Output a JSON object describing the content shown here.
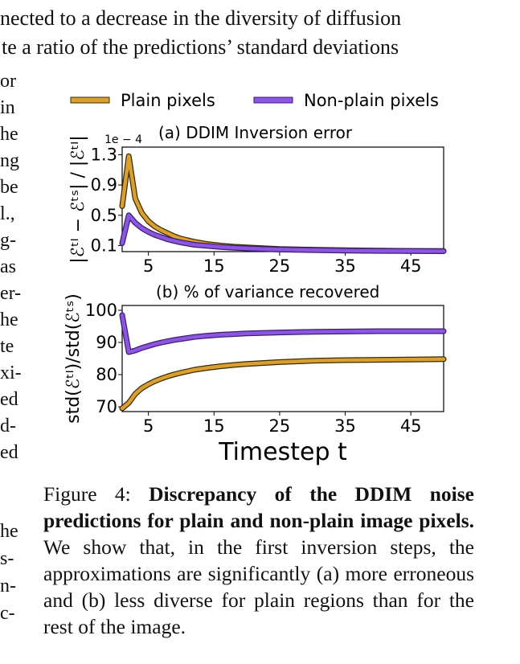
{
  "body_text": {
    "line1": "nected to a decrease in the diversity of diffusion",
    "line2": "te a ratio of the predictions’ standard deviations",
    "left_fragments_upper": [
      "or",
      "in",
      "he",
      "ng",
      "be",
      "l.,",
      "g-",
      "as",
      "er-",
      "he",
      "te",
      "xi-",
      "ed",
      "d-",
      "ed"
    ],
    "left_fragments_lower": [
      "he",
      "s-",
      "n-",
      "c-"
    ]
  },
  "legend": {
    "plain": "Plain pixels",
    "nonplain": "Non-plain pixels"
  },
  "colors": {
    "plain": "#d9a030",
    "plain_edge": "#3a2a08",
    "nonplain": "#8d55e0",
    "nonplain_edge": "#3a1f70"
  },
  "chart_data": [
    {
      "type": "line",
      "title": "(a) DDIM Inversion error",
      "ylabel": "|ℰᵗᴵ − ℰᵗˢ| / |ℰᵗᴵ|",
      "y_multiplier": "1e − 4",
      "xticks": [
        5,
        15,
        25,
        35,
        45
      ],
      "yticks": [
        0.1,
        0.5,
        0.9,
        1.3
      ],
      "ytick_labels": [
        "0.1",
        "0.5",
        "0.9",
        "1.3"
      ],
      "xlim": [
        1,
        50
      ],
      "ylim": [
        0.02,
        1.4
      ],
      "grid": false,
      "x": [
        1,
        2,
        3,
        4,
        5,
        6,
        7,
        8,
        9,
        10,
        12,
        14,
        16,
        18,
        20,
        25,
        30,
        35,
        40,
        45,
        50
      ],
      "series": [
        {
          "name": "Plain pixels",
          "values": [
            0.62,
            1.28,
            0.72,
            0.53,
            0.42,
            0.35,
            0.3,
            0.26,
            0.22,
            0.19,
            0.15,
            0.12,
            0.1,
            0.085,
            0.075,
            0.055,
            0.045,
            0.038,
            0.033,
            0.03,
            0.028
          ]
        },
        {
          "name": "Non-plain pixels",
          "values": [
            0.13,
            0.5,
            0.4,
            0.33,
            0.28,
            0.24,
            0.21,
            0.18,
            0.16,
            0.14,
            0.11,
            0.095,
            0.08,
            0.07,
            0.062,
            0.048,
            0.04,
            0.034,
            0.03,
            0.027,
            0.025
          ]
        }
      ]
    },
    {
      "type": "line",
      "title": "(b) % of variance recovered",
      "ylabel": "std(ℰᵗᴵ)/std(ℰᵗˢ)",
      "xlabel": "Timestep t",
      "xticks": [
        5,
        15,
        25,
        35,
        45
      ],
      "yticks": [
        70,
        80,
        90,
        100
      ],
      "ytick_labels": [
        "70",
        "80",
        "90",
        "100"
      ],
      "xlim": [
        1,
        50
      ],
      "ylim": [
        68.5,
        101.5
      ],
      "grid": false,
      "x": [
        1,
        2,
        3,
        4,
        5,
        6,
        7,
        8,
        9,
        10,
        12,
        14,
        16,
        18,
        20,
        25,
        30,
        35,
        40,
        45,
        50
      ],
      "series": [
        {
          "name": "Plain pixels",
          "values": [
            69.5,
            71.2,
            74.0,
            75.8,
            77.0,
            78.0,
            78.8,
            79.5,
            80.1,
            80.6,
            81.5,
            82.1,
            82.6,
            83.0,
            83.3,
            83.9,
            84.3,
            84.5,
            84.6,
            84.7,
            84.8
          ]
        },
        {
          "name": "Non-plain pixels",
          "values": [
            98.5,
            87.0,
            87.5,
            88.3,
            88.9,
            89.5,
            90.0,
            90.4,
            90.8,
            91.1,
            91.7,
            92.1,
            92.4,
            92.6,
            92.8,
            93.1,
            93.3,
            93.4,
            93.5,
            93.5,
            93.5
          ]
        }
      ]
    }
  ],
  "caption": {
    "label": "Figure 4:",
    "bold": "Discrepancy of the DDIM noise predictions for plain and non-plain image pixels.",
    "rest": "We show that, in the first inversion steps, the approximations are significantly (a) more erroneous and (b) less diverse for plain regions than for the rest of the image."
  }
}
